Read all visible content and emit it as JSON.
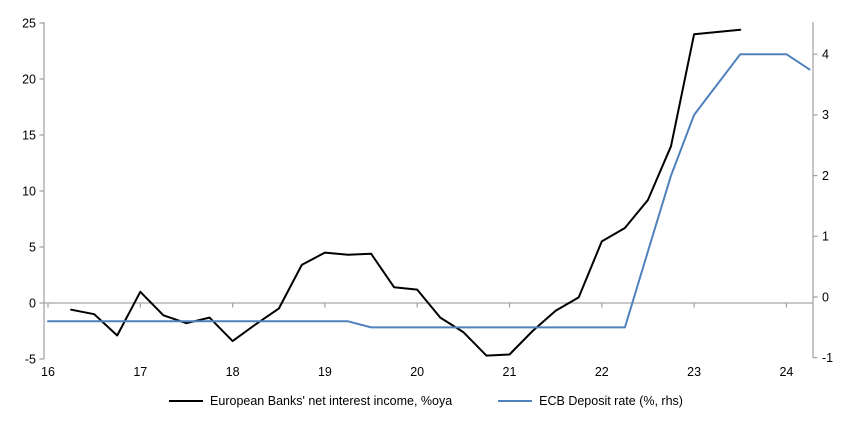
{
  "chart_data": {
    "type": "line",
    "title": "",
    "xlabel": "",
    "ylabel_left": "",
    "ylabel_right": "",
    "x_tick_labels": [
      "16",
      "17",
      "18",
      "19",
      "20",
      "21",
      "22",
      "23",
      "24"
    ],
    "x_tick_years": [
      16,
      17,
      18,
      19,
      20,
      21,
      22,
      23,
      24
    ],
    "left_axis": {
      "ticks": [
        25,
        20,
        15,
        10,
        5,
        0,
        -5
      ],
      "min": -5,
      "max": 25
    },
    "right_axis": {
      "ticks": [
        4,
        3,
        2,
        1,
        0,
        -1
      ],
      "min": -1,
      "max": 4.5
    },
    "grid": "zero-line-only",
    "legend_position": "bottom-center",
    "series": [
      {
        "name": "European Banks' net interest income, %oya",
        "axis": "left",
        "color": "#000000",
        "x_start": 16.25,
        "x_step": 0.25,
        "frequency": "quarterly",
        "values": [
          -0.6,
          -1.0,
          -2.9,
          1.0,
          -1.1,
          -1.8,
          -1.3,
          -3.4,
          -1.9,
          -0.5,
          3.4,
          4.5,
          4.3,
          4.4,
          1.4,
          1.2,
          -1.3,
          -2.6,
          -4.7,
          -4.6,
          -2.5,
          -0.7,
          0.5,
          5.5,
          6.7,
          9.2,
          14.0,
          24.0,
          24.2,
          24.4
        ]
      },
      {
        "name": "ECB Deposit rate (%, rhs)",
        "axis": "right",
        "color": "#4F81BD",
        "x_start": 16.0,
        "x_step": 0.25,
        "frequency": "quarterly",
        "values": [
          -0.4,
          -0.4,
          -0.4,
          -0.4,
          -0.4,
          -0.4,
          -0.4,
          -0.4,
          -0.4,
          -0.4,
          -0.4,
          -0.4,
          -0.4,
          -0.4,
          -0.5,
          -0.5,
          -0.5,
          -0.5,
          -0.5,
          -0.5,
          -0.5,
          -0.5,
          -0.5,
          -0.5,
          -0.5,
          -0.5,
          0.75,
          2.0,
          3.0,
          3.5,
          4.0,
          4.0,
          4.0,
          3.75
        ]
      }
    ],
    "colors": {
      "axis_gray": "#A6A6A6",
      "text": "#000000",
      "background": "#FFFFFF"
    }
  }
}
